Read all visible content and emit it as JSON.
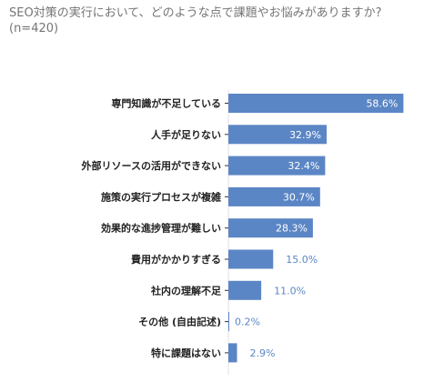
{
  "chart_data": {
    "type": "bar",
    "orientation": "horizontal",
    "title": "SEO対策の実行において、どのような点で課題やお悩みがありますか?",
    "subtitle": "(n=420)",
    "categories": [
      "専門知識が不足している",
      "人手が足りない",
      "外部リソースの活用ができない",
      "施策の実行プロセスが複雑",
      "効果的な進捗管理が難しい",
      "費用がかかりすぎる",
      "社内の理解不足",
      "その他 (自由記述)",
      "特に課題はない"
    ],
    "values": [
      58.6,
      32.9,
      32.4,
      30.7,
      28.3,
      15.0,
      11.0,
      0.2,
      2.9
    ],
    "value_labels": [
      "58.6%",
      "32.9%",
      "32.4%",
      "30.7%",
      "28.3%",
      "15.0%",
      "11.0%",
      "0.2%",
      "2.9%"
    ],
    "xlim": [
      0,
      60
    ],
    "grid": false,
    "legend": "none",
    "bar_color": "#5b86c5",
    "label_inside_color": "#ffffff",
    "label_outside_color": "#5b86c5"
  }
}
